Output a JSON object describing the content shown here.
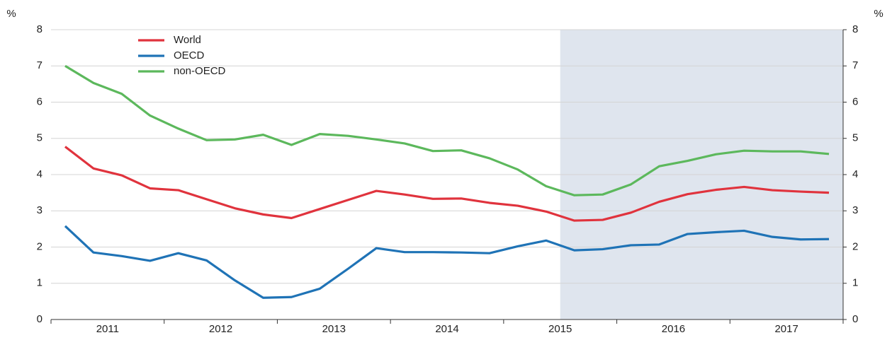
{
  "chart_data": {
    "type": "line",
    "y_label": "%",
    "y2_label": "%",
    "categories": [
      null,
      null,
      null,
      null,
      null,
      null,
      null,
      null,
      null,
      null,
      null,
      null,
      null,
      null,
      null,
      null,
      null,
      null,
      null,
      null,
      null,
      null,
      null,
      null,
      null,
      null,
      null,
      null
    ],
    "year_labels": [
      "2011",
      "2012",
      "2013",
      "2014",
      "2015",
      "2016",
      "2017"
    ],
    "shade_from_category": 18,
    "shade_color": "#dfe5ee",
    "series": [
      {
        "name": "World",
        "color": "#e0333d",
        "values": [
          4.77,
          4.17,
          3.98,
          3.62,
          3.57,
          3.32,
          3.07,
          2.9,
          2.8,
          3.05,
          3.3,
          3.55,
          3.45,
          3.33,
          3.34,
          3.22,
          3.14,
          2.98,
          2.73,
          2.75,
          2.95,
          3.25,
          3.46,
          3.58,
          3.66,
          3.57,
          3.53,
          3.5
        ]
      },
      {
        "name": "OECD",
        "color": "#1f73b6",
        "values": [
          2.58,
          1.85,
          1.75,
          1.62,
          1.83,
          1.63,
          1.08,
          0.6,
          0.62,
          0.85,
          1.4,
          1.97,
          1.86,
          1.86,
          1.85,
          1.83,
          2.02,
          2.18,
          1.91,
          1.94,
          2.05,
          2.07,
          2.36,
          2.41,
          2.45,
          2.28,
          2.21,
          2.22
        ]
      },
      {
        "name": "non-OECD",
        "color": "#5cb85c",
        "values": [
          7.0,
          6.53,
          6.23,
          5.63,
          5.27,
          4.95,
          4.97,
          5.1,
          4.82,
          5.12,
          5.07,
          4.97,
          4.86,
          4.65,
          4.67,
          4.45,
          4.14,
          3.68,
          3.43,
          3.45,
          3.73,
          4.23,
          4.38,
          4.56,
          4.66,
          4.64,
          4.64,
          4.57
        ]
      }
    ],
    "ylim": [
      0,
      8
    ],
    "yticks": [
      0,
      1,
      2,
      3,
      4,
      5,
      6,
      7,
      8
    ],
    "y2lim": [
      0,
      8
    ],
    "y2ticks": [
      0,
      1,
      2,
      3,
      4,
      5,
      6,
      7,
      8
    ],
    "grid": true,
    "legend": "top-left"
  }
}
